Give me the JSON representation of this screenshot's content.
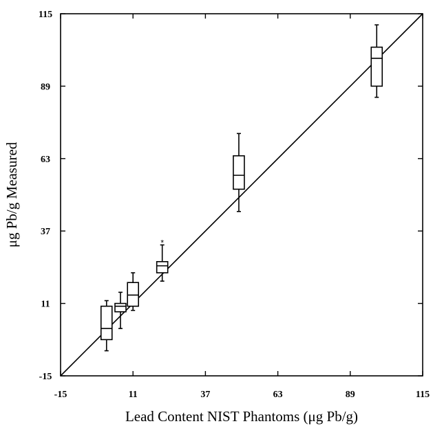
{
  "chart_data": {
    "type": "box",
    "title": "",
    "xlabel": "Lead Content NIST Phantoms (μg Pb/g)",
    "ylabel": "μg Pb/g Measured",
    "xlim": [
      -15,
      115
    ],
    "ylim": [
      -15,
      115
    ],
    "x_ticks": [
      "-15",
      "11",
      "37",
      "63",
      "89",
      "115"
    ],
    "y_ticks": [
      "-15",
      "11",
      "37",
      "63",
      "89",
      "115"
    ],
    "grid": false,
    "reference_line": {
      "label": "",
      "x": [
        -15,
        115
      ],
      "y": [
        -15,
        115
      ]
    },
    "boxes": [
      {
        "x": 1.5,
        "whisker_low": -6,
        "q1": -2,
        "median": 2,
        "q3": 10,
        "whisker_high": 12,
        "outliers": []
      },
      {
        "x": 6.5,
        "whisker_low": 2,
        "q1": 8,
        "median": 10,
        "q3": 11,
        "whisker_high": 15,
        "outliers": []
      },
      {
        "x": 11,
        "whisker_low": 8.5,
        "q1": 10,
        "median": 14,
        "q3": 18.5,
        "whisker_high": 22,
        "outliers": []
      },
      {
        "x": 21.5,
        "whisker_low": 19,
        "q1": 22,
        "median": 24.5,
        "q3": 26,
        "whisker_high": 32,
        "outliers": [
          33
        ]
      },
      {
        "x": 49,
        "whisker_low": 44,
        "q1": 52,
        "median": 57,
        "q3": 64,
        "whisker_high": 72,
        "outliers": []
      },
      {
        "x": 98.5,
        "whisker_low": 85,
        "q1": 89,
        "median": 99,
        "q3": 103,
        "whisker_high": 111,
        "outliers": []
      }
    ]
  }
}
